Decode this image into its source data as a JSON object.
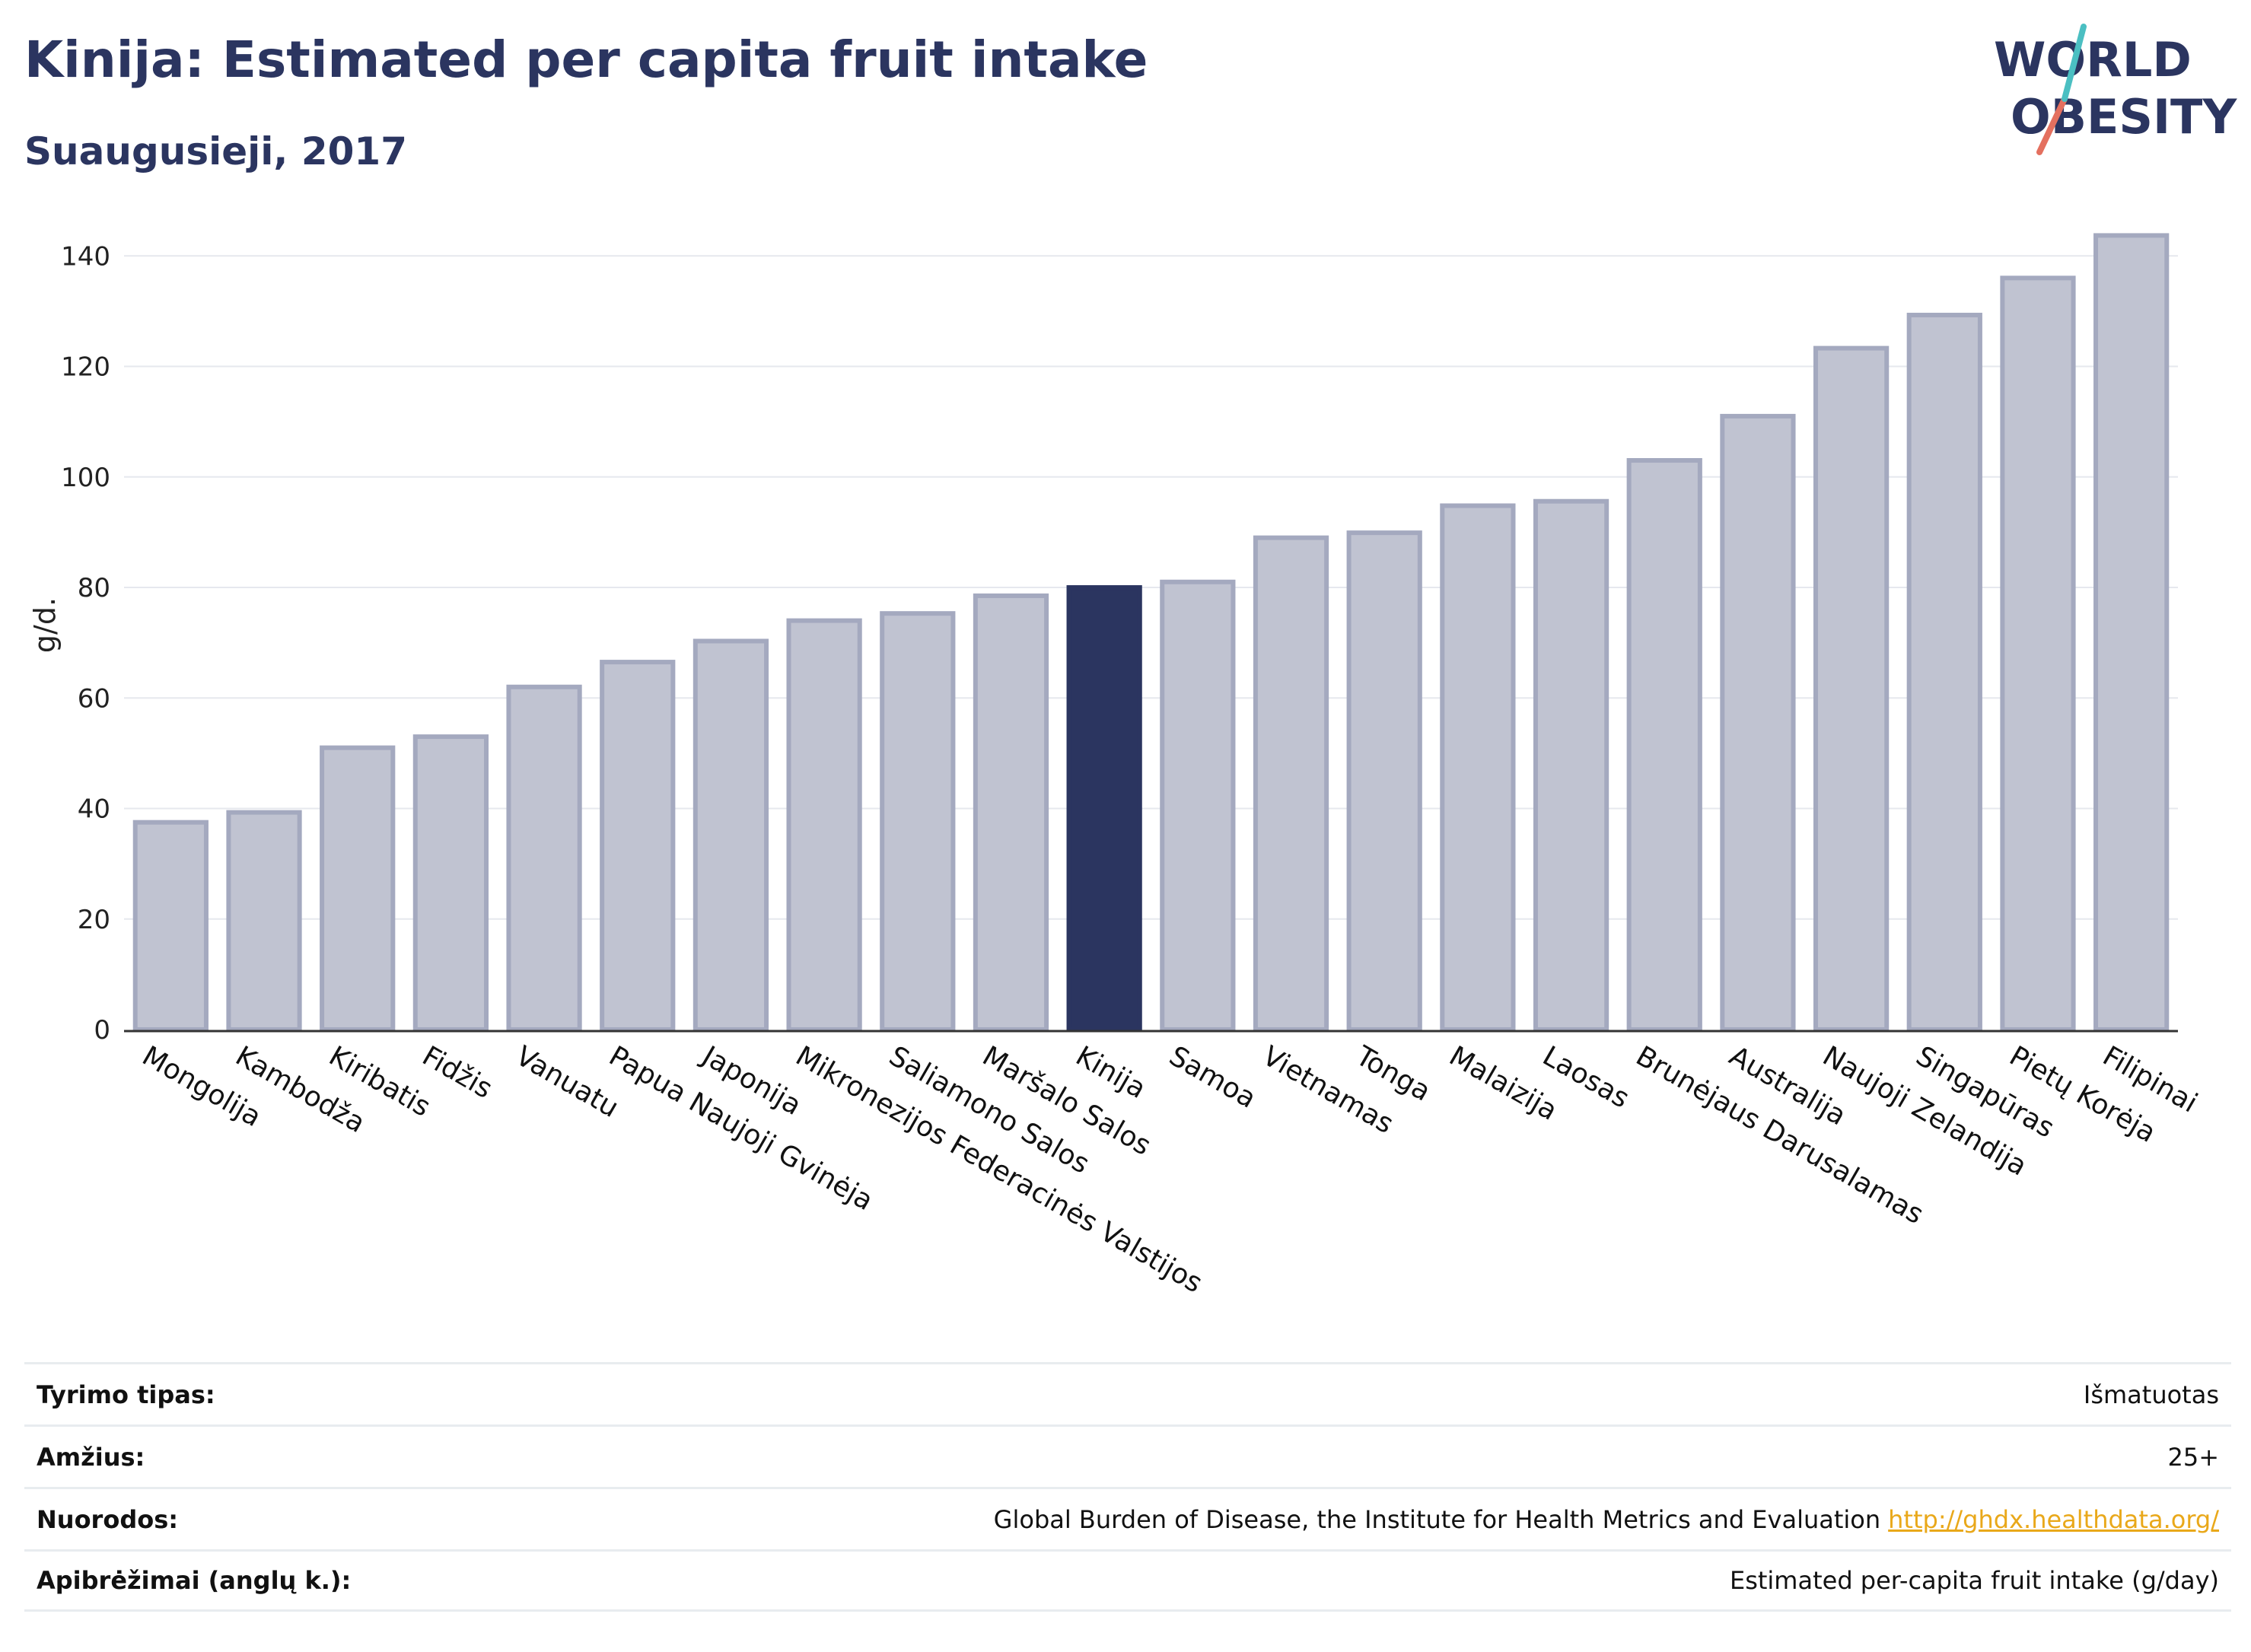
{
  "header": {
    "title": "Kinija: Estimated per capita fruit intake",
    "subtitle": "Suaugusieji, 2017"
  },
  "logo": {
    "line1": "WORLD",
    "line2": "OBESITY"
  },
  "colors": {
    "highlight": "#2b3560",
    "bar_fill": "#c0c3d1",
    "bar_stroke": "#a4a9bf",
    "grid": "#e6e8ee",
    "axis": "#333333",
    "link": "#e9a81a"
  },
  "chart_data": {
    "type": "bar",
    "ylabel": "g/d.",
    "ylim": [
      0,
      145
    ],
    "yticks": [
      0,
      20,
      40,
      60,
      80,
      100,
      120,
      140
    ],
    "grid": true,
    "highlight_category": "Kinija",
    "categories": [
      "Mongolija",
      "Kambodža",
      "Kiribatis",
      "Fidžis",
      "Vanuatu",
      "Papua Naujoji Gvinėja",
      "Japonija",
      "Mikronezijos Federacinės Valstijos",
      "Saliamono Salos",
      "Maršalo Salos",
      "Kinija",
      "Samoa",
      "Vietnamas",
      "Tonga",
      "Malaizija",
      "Laosas",
      "Brunėjaus Darusalamas",
      "Australija",
      "Naujoji Zelandija",
      "Singapūras",
      "Pietų Korėja",
      "Filipinai"
    ],
    "values": [
      37.5,
      39.3,
      51,
      53,
      62,
      66.5,
      70.3,
      74,
      75.3,
      78.5,
      80,
      81,
      89,
      89.9,
      94.8,
      95.6,
      103,
      111,
      123.3,
      129.3,
      136,
      143.7
    ]
  },
  "meta": [
    {
      "label": "Tyrimo tipas:",
      "value": "Išmatuotas"
    },
    {
      "label": "Amžius:",
      "value": "25+"
    },
    {
      "label": "Nuorodos:",
      "value": "Global Burden of Disease, the Institute for Health Metrics and Evaluation",
      "link": "http://ghdx.healthdata.org/"
    },
    {
      "label": "Apibrėžimai (anglų k.):",
      "value": "Estimated per-capita fruit intake (g/day)"
    }
  ]
}
